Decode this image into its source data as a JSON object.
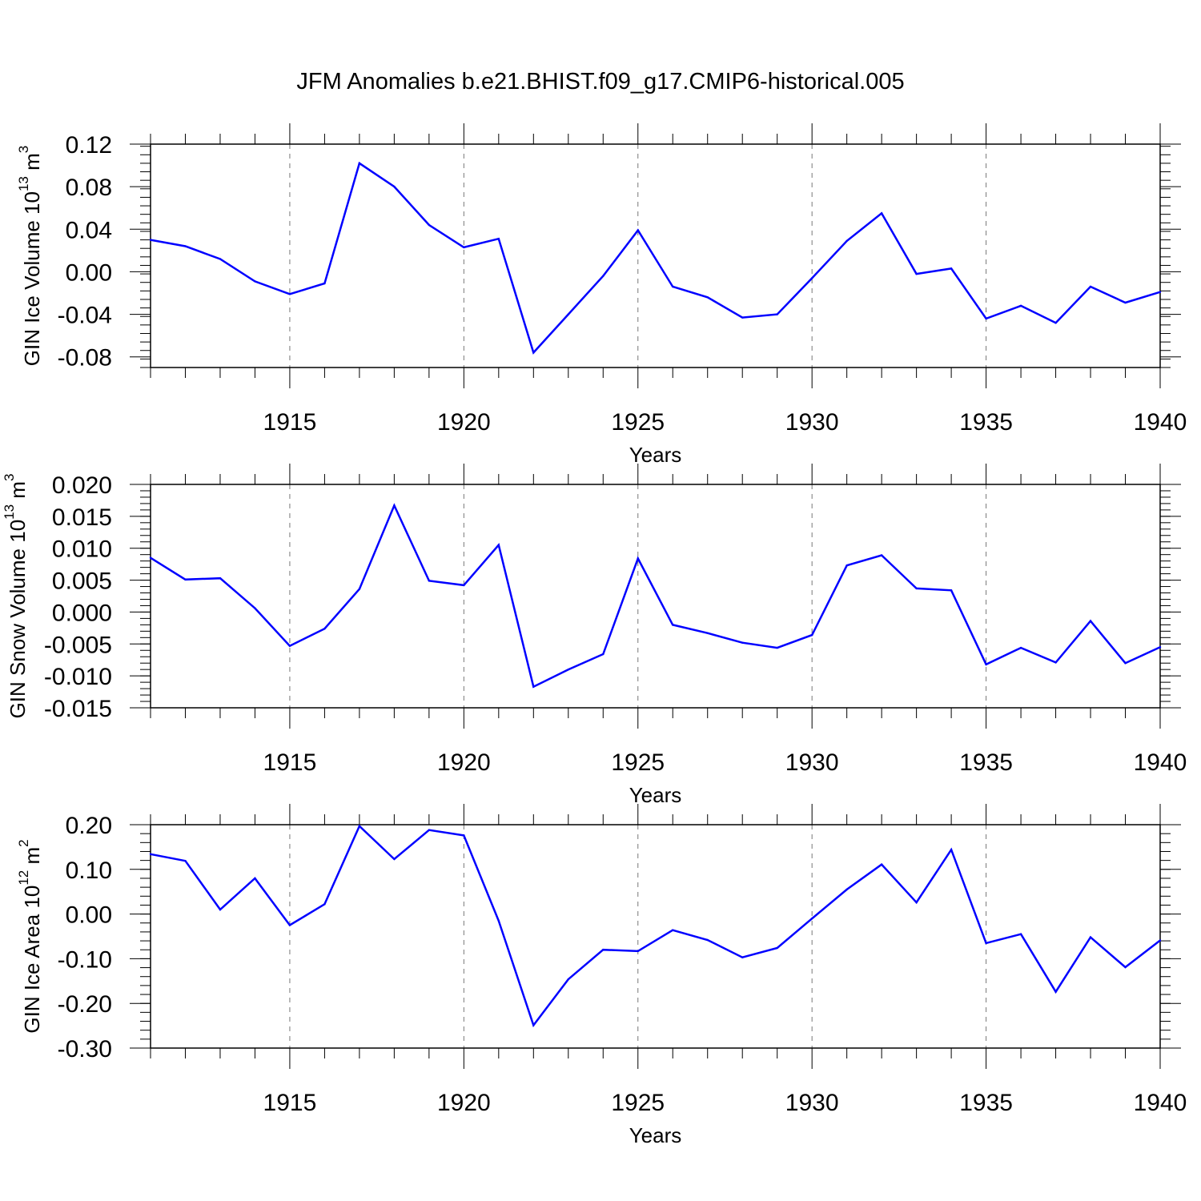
{
  "title": "JFM Anomalies b.e21.BHIST.f09_g17.CMIP6-historical.005",
  "colors": {
    "line": "#0000ff",
    "axis": "#000000",
    "grid": "#777777"
  },
  "chart_data": [
    {
      "type": "line",
      "ylabel": "GIN Ice Volume 10",
      "ylabel_exp": "13",
      "ylabel_unit": " m",
      "ylabel_unit_exp": "3",
      "xlabel": "Years",
      "xlim": [
        1911,
        1940
      ],
      "ylim": [
        -0.09,
        0.12
      ],
      "yticks": [
        0.12,
        0.08,
        0.04,
        0.0,
        -0.04,
        -0.08
      ],
      "ytick_labels": [
        "0.12",
        "0.08",
        "0.04",
        "0.00",
        "-0.04",
        "-0.08"
      ],
      "xticks": [
        1915,
        1920,
        1925,
        1930,
        1935,
        1940
      ],
      "xtick_labels": [
        "1915",
        "1920",
        "1925",
        "1930",
        "1935",
        "1940"
      ],
      "grid": "dashed vertical lines at x ticks",
      "x": [
        1911,
        1912,
        1913,
        1914,
        1915,
        1916,
        1917,
        1918,
        1919,
        1920,
        1921,
        1922,
        1923,
        1924,
        1925,
        1926,
        1927,
        1928,
        1929,
        1930,
        1931,
        1932,
        1933,
        1934,
        1935,
        1936,
        1937,
        1938,
        1939,
        1940
      ],
      "y": [
        0.03,
        0.024,
        0.012,
        -0.009,
        -0.021,
        -0.011,
        0.102,
        0.08,
        0.044,
        0.023,
        0.031,
        -0.076,
        -0.04,
        -0.004,
        0.039,
        -0.014,
        -0.024,
        -0.043,
        -0.04,
        -0.006,
        0.029,
        0.055,
        -0.002,
        0.003,
        -0.044,
        -0.032,
        -0.048,
        -0.014,
        -0.029,
        -0.019
      ]
    },
    {
      "type": "line",
      "ylabel": "GIN Snow Volume 10",
      "ylabel_exp": "13",
      "ylabel_unit": " m",
      "ylabel_unit_exp": "3",
      "xlabel": "Years",
      "xlim": [
        1911,
        1940
      ],
      "ylim": [
        -0.015,
        0.02
      ],
      "yticks": [
        0.02,
        0.015,
        0.01,
        0.005,
        0.0,
        -0.005,
        -0.01,
        -0.015
      ],
      "ytick_labels": [
        "0.020",
        "0.015",
        "0.010",
        "0.005",
        "0.000",
        "-0.005",
        "-0.010",
        "-0.015"
      ],
      "xticks": [
        1915,
        1920,
        1925,
        1930,
        1935,
        1940
      ],
      "xtick_labels": [
        "1915",
        "1920",
        "1925",
        "1930",
        "1935",
        "1940"
      ],
      "grid": "dashed vertical lines at x ticks",
      "x": [
        1911,
        1912,
        1913,
        1914,
        1915,
        1916,
        1917,
        1918,
        1919,
        1920,
        1921,
        1922,
        1923,
        1924,
        1925,
        1926,
        1927,
        1928,
        1929,
        1930,
        1931,
        1932,
        1933,
        1934,
        1935,
        1936,
        1937,
        1938,
        1939,
        1940
      ],
      "y": [
        0.0085,
        0.0051,
        0.0053,
        0.0006,
        -0.0053,
        -0.0026,
        0.0036,
        0.0167,
        0.0049,
        0.0042,
        0.0105,
        -0.0117,
        -0.009,
        -0.0066,
        0.0084,
        -0.002,
        -0.0033,
        -0.0048,
        -0.0056,
        -0.0036,
        0.0073,
        0.0089,
        0.0037,
        0.0034,
        -0.0082,
        -0.0056,
        -0.0079,
        -0.0014,
        -0.008,
        -0.0055
      ]
    },
    {
      "type": "line",
      "ylabel": "GIN Ice Area 10",
      "ylabel_exp": "12",
      "ylabel_unit": " m",
      "ylabel_unit_exp": "2",
      "xlabel": "Years",
      "xlim": [
        1911,
        1940
      ],
      "ylim": [
        -0.3,
        0.2
      ],
      "yticks": [
        0.2,
        0.1,
        0.0,
        -0.1,
        -0.2,
        -0.3
      ],
      "ytick_labels": [
        "0.20",
        "0.10",
        "0.00",
        "-0.10",
        "-0.20",
        "-0.30"
      ],
      "xticks": [
        1915,
        1920,
        1925,
        1930,
        1935,
        1940
      ],
      "xtick_labels": [
        "1915",
        "1920",
        "1925",
        "1930",
        "1935",
        "1940"
      ],
      "grid": "dashed vertical lines at x ticks",
      "x": [
        1911,
        1912,
        1913,
        1914,
        1915,
        1916,
        1917,
        1918,
        1919,
        1920,
        1921,
        1922,
        1923,
        1924,
        1925,
        1926,
        1927,
        1928,
        1929,
        1930,
        1931,
        1932,
        1933,
        1934,
        1935,
        1936,
        1937,
        1938,
        1939,
        1940
      ],
      "y": [
        0.134,
        0.119,
        0.01,
        0.08,
        -0.025,
        0.022,
        0.197,
        0.123,
        0.188,
        0.176,
        -0.015,
        -0.249,
        -0.146,
        -0.08,
        -0.083,
        -0.036,
        -0.058,
        -0.097,
        -0.076,
        -0.01,
        0.055,
        0.111,
        0.026,
        0.144,
        -0.065,
        -0.045,
        -0.174,
        -0.052,
        -0.119,
        -0.059
      ]
    }
  ]
}
